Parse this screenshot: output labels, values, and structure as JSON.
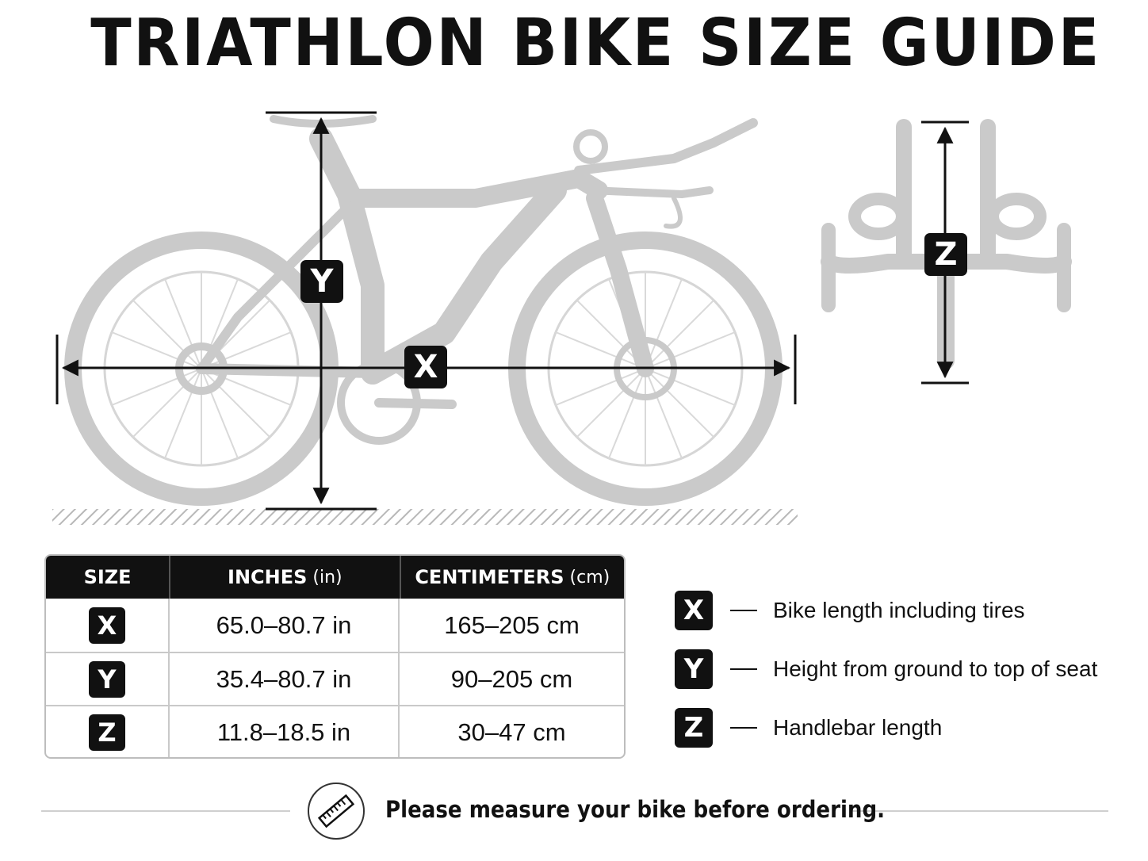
{
  "title": "TRIATHLON BIKE SIZE GUIDE",
  "diagram_labels": {
    "x": "X",
    "y": "Y",
    "z": "Z"
  },
  "table": {
    "headers": {
      "size": "SIZE",
      "inches": "INCHES",
      "inches_unit": "(in)",
      "cm": "CENTIMETERS",
      "cm_unit": "(cm)"
    },
    "rows": [
      {
        "size": "X",
        "inches": "65.0–80.7 in",
        "cm": "165–205 cm"
      },
      {
        "size": "Y",
        "inches": "35.4–80.7 in",
        "cm": "90–205 cm"
      },
      {
        "size": "Z",
        "inches": "11.8–18.5 in",
        "cm": "30–47 cm"
      }
    ]
  },
  "legend": [
    {
      "key": "X",
      "text": "Bike length including tires"
    },
    {
      "key": "Y",
      "text": "Height from ground to top of seat"
    },
    {
      "key": "Z",
      "text": "Handlebar length"
    }
  ],
  "footer": {
    "text": "Please measure your bike before ordering.",
    "icon": "ruler-icon"
  },
  "colors": {
    "bike": "#c9c9c9",
    "ink": "#111111",
    "grid": "#c9c9c9"
  }
}
